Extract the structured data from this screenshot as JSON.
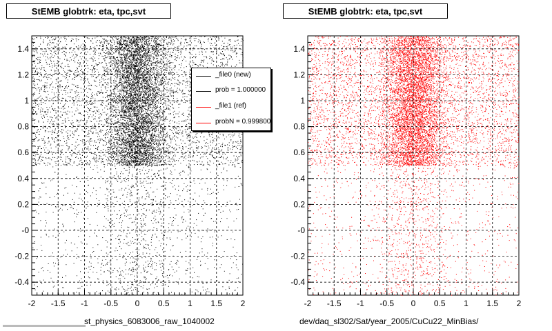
{
  "chart_data": [
    {
      "type": "scatter",
      "title": "StEMB globtrk: eta, tpc,svt",
      "xlabel": "st_physics_6083006_raw_1040002",
      "ylabel": "",
      "xlim": [
        -2,
        2
      ],
      "ylim": [
        -0.5,
        1.5
      ],
      "x_ticks": [
        "-2",
        "-1.5",
        "-1",
        "-0.5",
        "0",
        "0.5",
        "1",
        "1.5",
        "2"
      ],
      "y_ticks": [
        "-0.4",
        "-0.2",
        "-0",
        "0.2",
        "0.4",
        "0.6",
        "0.8",
        "1",
        "1.2",
        "1.4"
      ],
      "grid": true,
      "marker_color": "#000000",
      "density": {
        "dense_region": {
          "x": [
            -2,
            2
          ],
          "y": [
            0.5,
            1.5
          ],
          "peak_x": 0
        },
        "sparse_region": {
          "x": [
            -2,
            2
          ],
          "y": [
            -0.5,
            0.5
          ]
        }
      },
      "legend": {
        "position": "top-right",
        "entries": [
          {
            "label": "_file0 (new)",
            "color": "#000000"
          },
          {
            "label": "prob = 1.000000",
            "color": "#000000"
          },
          {
            "label": "_file1 (ref)",
            "color": "#ff0000"
          },
          {
            "label": "probN = 0.999800",
            "color": "#ff0000"
          }
        ]
      }
    },
    {
      "type": "scatter",
      "title": "StEMB globtrk: eta, tpc,svt",
      "xlabel": "dev/daq_sl302/Sat/year_2005/CuCu22_MinBias/",
      "ylabel": "",
      "xlim": [
        -2,
        2
      ],
      "ylim": [
        -0.5,
        1.5
      ],
      "x_ticks": [
        "-2",
        "-1.5",
        "-1",
        "-0.5",
        "0",
        "0.5",
        "1",
        "1.5",
        "2"
      ],
      "y_ticks": [
        "-0.4",
        "-0.2",
        "-0",
        "0.2",
        "0.4",
        "0.6",
        "0.8",
        "1",
        "1.2",
        "1.4"
      ],
      "grid": true,
      "marker_color": "#ff0000",
      "density": {
        "dense_region": {
          "x": [
            -2,
            2
          ],
          "y": [
            0.5,
            1.5
          ],
          "peak_x": 0
        },
        "sparse_region": {
          "x": [
            -2,
            2
          ],
          "y": [
            -0.5,
            0.5
          ]
        }
      }
    }
  ]
}
